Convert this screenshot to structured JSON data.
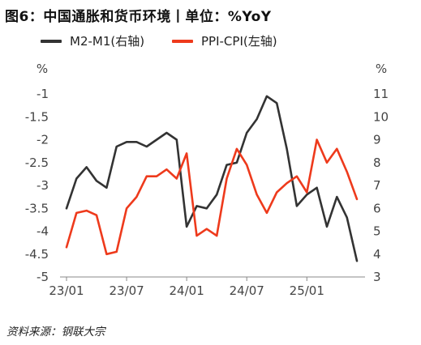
{
  "title": "图6：中国通胀和货币环境丨单位：%YoY",
  "source": "资料来源：钢联大宗",
  "colors": {
    "m2m1": "#333333",
    "ppicpi": "#ee3a1c",
    "axis": "#888888",
    "text": "#444444"
  },
  "chart_data": {
    "type": "line",
    "title": "图6：中国通胀和货币环境丨单位：%YoY",
    "x": [
      "23/01",
      "23/02",
      "23/03",
      "23/04",
      "23/05",
      "23/06",
      "23/07",
      "23/08",
      "23/09",
      "23/10",
      "23/11",
      "23/12",
      "24/01",
      "24/02",
      "24/03",
      "24/04",
      "24/05",
      "24/06",
      "24/07",
      "24/08",
      "24/09",
      "24/10",
      "24/11",
      "24/12",
      "25/01",
      "25/02",
      "25/03",
      "25/04",
      "25/05",
      "25/06"
    ],
    "x_tick_labels": [
      "23/01",
      "23/07",
      "24/01",
      "24/07",
      "25/01"
    ],
    "left_axis": {
      "unit": "%",
      "ylim": [
        -5,
        -1
      ],
      "ticks": [
        "-1",
        "-1.5",
        "-2",
        "-2.5",
        "-3",
        "-3.5",
        "-4",
        "-4.5",
        "-5"
      ]
    },
    "right_axis": {
      "unit": "%",
      "ylim": [
        3,
        11
      ],
      "ticks": [
        "11",
        "10",
        "9",
        "8",
        "7",
        "6",
        "5",
        "4",
        "3"
      ]
    },
    "grid": false,
    "legend_position": "top",
    "series": [
      {
        "name": "M2-M1(右轴)",
        "axis": "right",
        "values": [
          6.0,
          7.3,
          7.8,
          7.2,
          6.9,
          8.7,
          8.9,
          8.9,
          8.7,
          9.0,
          9.3,
          9.0,
          5.2,
          6.1,
          6.0,
          6.6,
          7.9,
          8.0,
          9.3,
          9.9,
          10.9,
          10.6,
          8.6,
          6.1,
          6.6,
          6.9,
          5.2,
          6.5,
          5.6,
          3.7
        ]
      },
      {
        "name": "PPI-CPI(左轴)",
        "axis": "left",
        "values": [
          -4.35,
          -3.6,
          -3.55,
          -3.65,
          -4.5,
          -4.45,
          -3.5,
          -3.25,
          -2.8,
          -2.8,
          -2.65,
          -2.85,
          -2.3,
          -4.1,
          -3.95,
          -4.1,
          -2.85,
          -2.2,
          -2.55,
          -3.2,
          -3.6,
          -3.15,
          -2.95,
          -2.8,
          -3.15,
          -2.0,
          -2.5,
          -2.2,
          -2.7,
          -3.3
        ]
      }
    ]
  }
}
